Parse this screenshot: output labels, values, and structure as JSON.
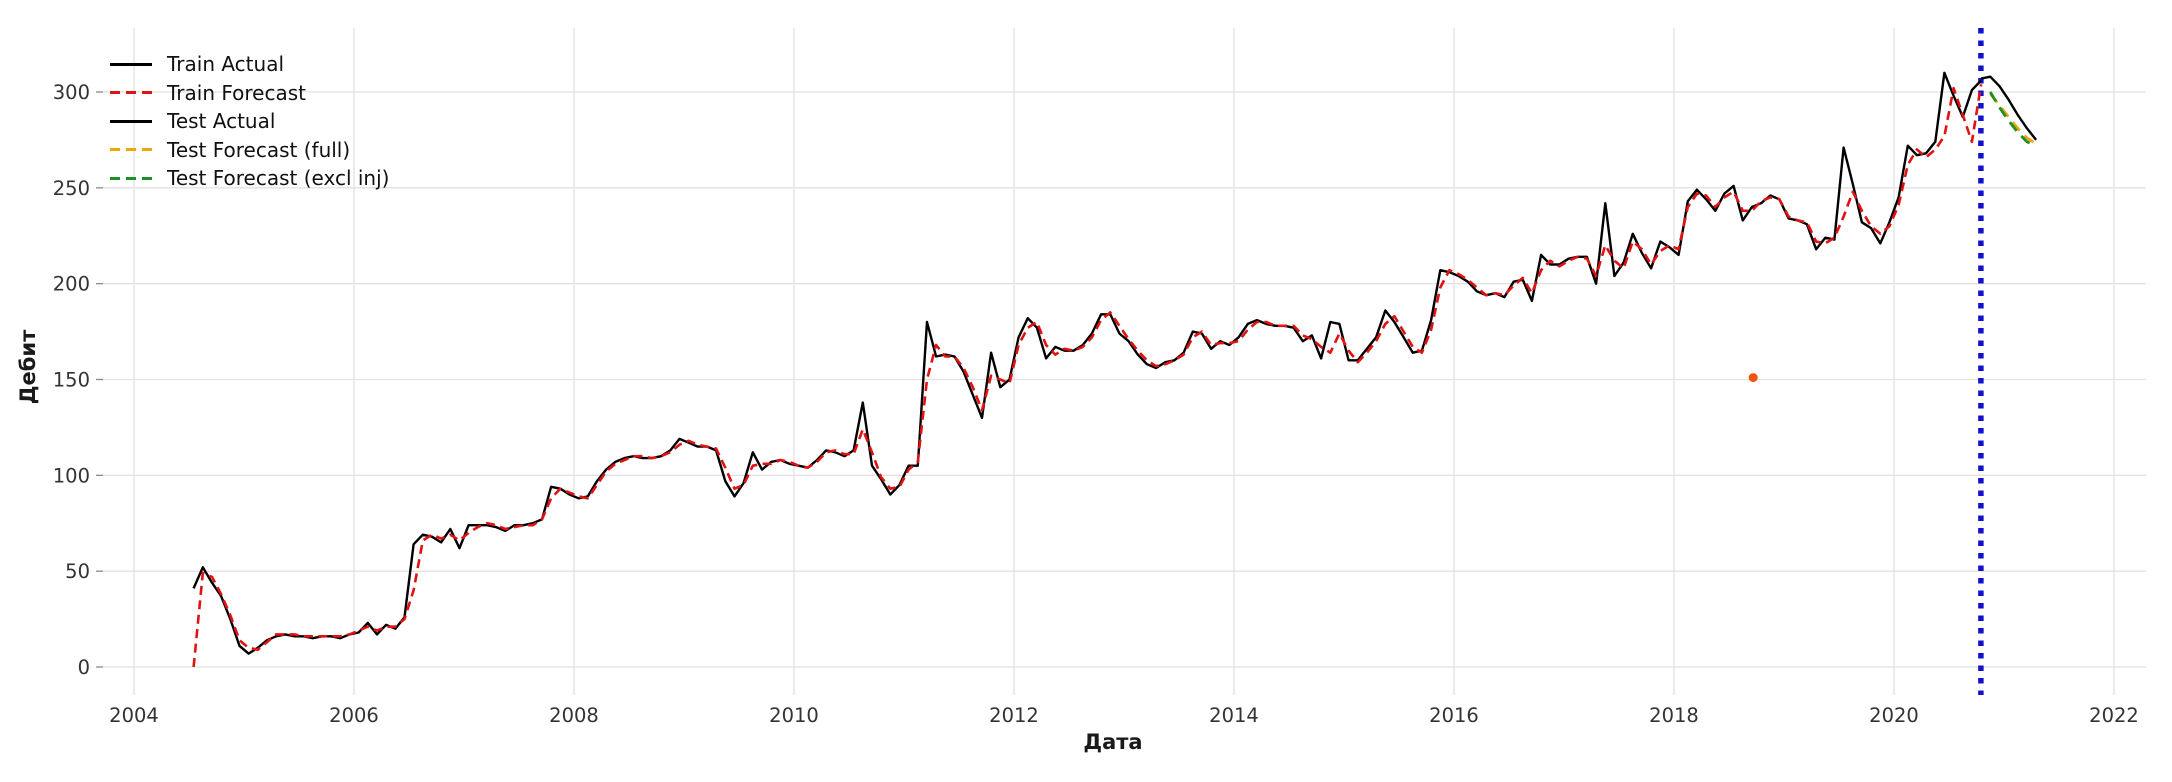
{
  "figure_title": "",
  "axes": {
    "xlabel": "Дата",
    "ylabel": "Дебит"
  },
  "legend": {
    "position": "upper left",
    "items": [
      {
        "label": "Train Actual",
        "color": "#000000",
        "dash": false
      },
      {
        "label": "Train Forecast",
        "color": "#e01212",
        "dash": true
      },
      {
        "label": "Test Actual",
        "color": "#000000",
        "dash": false
      },
      {
        "label": "Test Forecast (full)",
        "color": "#f0a50a",
        "dash": true
      },
      {
        "label": "Test Forecast (excl inj)",
        "color": "#1f8f2a",
        "dash": true
      }
    ]
  },
  "colors": {
    "grid": "#e2e2e2",
    "tick_label": "#333333",
    "split_line": "#1212cc",
    "outlier": "#ef5411",
    "background": "#ffffff"
  },
  "chart_data": {
    "type": "line",
    "title": "",
    "xlabel": "Дата",
    "ylabel": "Дебит",
    "xlim": [
      2003.76,
      2022.3
    ],
    "ylim": [
      -12.5,
      333
    ],
    "x_ticks": [
      2004,
      2006,
      2008,
      2010,
      2012,
      2014,
      2016,
      2018,
      2020,
      2022
    ],
    "y_ticks": [
      0,
      50,
      100,
      150,
      200,
      250,
      300
    ],
    "grid": true,
    "legend_position": "upper left",
    "split_line": {
      "x": 2020.79,
      "color": "#1212cc",
      "style": "dotted",
      "orientation": "vertical"
    },
    "outlier_point": {
      "x": 2018.72,
      "y": 151,
      "color": "#ef5411"
    },
    "series": [
      {
        "name": "Train Actual",
        "color": "#000000",
        "dash": null,
        "width": 2.4,
        "x_start": 2004.542,
        "x_step": 0.083333,
        "values": [
          41,
          52,
          44,
          37,
          25,
          11,
          7,
          10,
          14,
          16,
          17,
          16,
          16,
          15,
          16,
          16,
          15,
          17,
          18,
          23,
          17,
          22,
          20,
          26,
          64,
          69,
          68,
          65,
          72,
          62,
          74,
          74,
          74,
          73,
          71,
          74,
          74,
          75,
          77,
          94,
          93,
          90,
          88,
          89,
          97,
          103,
          107,
          109,
          110,
          109,
          109,
          110,
          113,
          119,
          117,
          115,
          115,
          113,
          97,
          89,
          96,
          112,
          103,
          107,
          108,
          106,
          105,
          104,
          108,
          113,
          112,
          110,
          113,
          138,
          105,
          98,
          90,
          95,
          105,
          105,
          180,
          162,
          163,
          162,
          154,
          142,
          130,
          164,
          146,
          150,
          172,
          182,
          177,
          161,
          167,
          165,
          165,
          168,
          174,
          184,
          184,
          174,
          170,
          163,
          158,
          156,
          159,
          160,
          164,
          175,
          174,
          166,
          170,
          168,
          172,
          179,
          181,
          179,
          178,
          178,
          177,
          170,
          173,
          161,
          180,
          179,
          160,
          160,
          166,
          172,
          186,
          180,
          172,
          164,
          165,
          181,
          207,
          206,
          204,
          201,
          196,
          194,
          195,
          193,
          201,
          202,
          191,
          215,
          210,
          210,
          213,
          214,
          214,
          200,
          242,
          204,
          211,
          226,
          216,
          208,
          222,
          219,
          215,
          243,
          249,
          244,
          238,
          247,
          251,
          233,
          240,
          242,
          246,
          244,
          234,
          233,
          231,
          218,
          224,
          223,
          271,
          252,
          232,
          229,
          221,
          232,
          245,
          272,
          267,
          268,
          274,
          310,
          298,
          287,
          301,
          306
        ]
      },
      {
        "name": "Train Forecast",
        "color": "#e01212",
        "dash": "9 5.5",
        "width": 2.6,
        "x_start": 2004.542,
        "x_step": 0.083333,
        "values": [
          0,
          49,
          47,
          38,
          27,
          14,
          10,
          9,
          13,
          17,
          17,
          17,
          16,
          16,
          16,
          16,
          16,
          17,
          19,
          21,
          19,
          21,
          21,
          25,
          40,
          66,
          69,
          67,
          69,
          66,
          70,
          73,
          75,
          74,
          72,
          73,
          74,
          74,
          77,
          88,
          93,
          91,
          89,
          88,
          95,
          102,
          106,
          108,
          110,
          110,
          109,
          110,
          112,
          116,
          118,
          116,
          115,
          114,
          104,
          93,
          95,
          105,
          106,
          106,
          108,
          107,
          105,
          104,
          107,
          112,
          113,
          111,
          111,
          124,
          112,
          99,
          93,
          94,
          103,
          107,
          150,
          168,
          162,
          162,
          156,
          146,
          134,
          152,
          150,
          148,
          168,
          177,
          180,
          168,
          163,
          166,
          165,
          167,
          172,
          181,
          185,
          178,
          171,
          165,
          160,
          157,
          158,
          160,
          163,
          172,
          175,
          168,
          169,
          169,
          170,
          176,
          180,
          180,
          178,
          178,
          178,
          173,
          171,
          167,
          164,
          174,
          165,
          159,
          164,
          170,
          179,
          183,
          175,
          167,
          164,
          176,
          198,
          207,
          205,
          202,
          198,
          194,
          195,
          194,
          199,
          203,
          195,
          207,
          212,
          209,
          212,
          214,
          213,
          204,
          220,
          212,
          208,
          222,
          218,
          210,
          217,
          220,
          218,
          240,
          247,
          246,
          240,
          245,
          248,
          238,
          238,
          243,
          245,
          244,
          235,
          233,
          232,
          222,
          221,
          224,
          235,
          248,
          238,
          230,
          226,
          230,
          241,
          262,
          270,
          266,
          270,
          277,
          302,
          288,
          274,
          304
        ]
      },
      {
        "name": "Test Actual",
        "color": "#000000",
        "dash": null,
        "width": 2.4,
        "x_start": 2020.792,
        "x_step": 0.083333,
        "values": [
          307,
          308,
          303,
          296,
          288,
          281,
          275
        ]
      },
      {
        "name": "Test Forecast (full)",
        "color": "#f0a50a",
        "dash": "11 7",
        "width": 2.8,
        "x_start": 2020.875,
        "x_step": 0.083333,
        "values": [
          299,
          293,
          287,
          281,
          276,
          273
        ]
      },
      {
        "name": "Test Forecast (excl inj)",
        "color": "#1f8f2a",
        "dash": "11 7",
        "width": 2.8,
        "x_start": 2020.875,
        "x_step": 0.083333,
        "values": [
          300,
          292,
          285,
          279,
          274,
          272
        ]
      }
    ]
  }
}
